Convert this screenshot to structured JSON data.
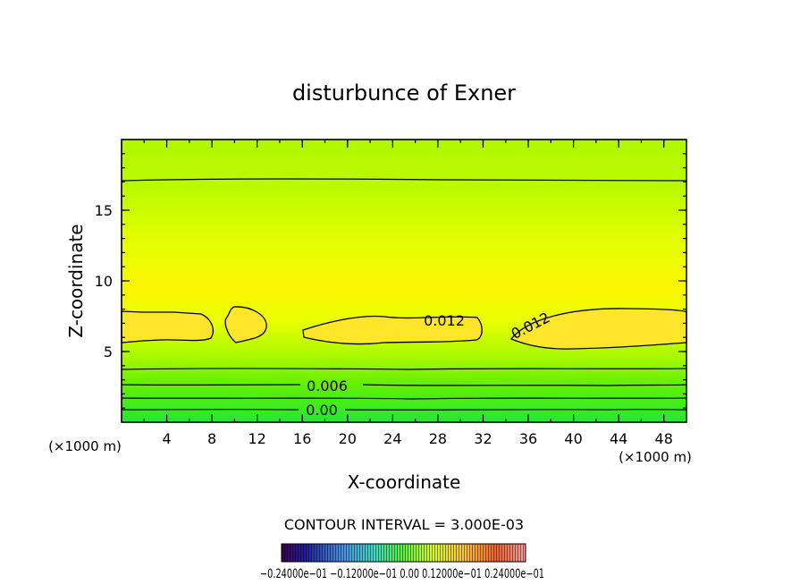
{
  "chart_data": {
    "type": "contour",
    "title": "disturbunce of Exner",
    "xlabel": "X-coordinate",
    "ylabel": "Z-coordinate",
    "x_unit_label": "(×1000 m)",
    "x_unit_label_right": "(×1000 m)",
    "xlim": [
      0,
      50
    ],
    "ylim": [
      0,
      20
    ],
    "x_ticks": [
      4,
      8,
      12,
      16,
      20,
      24,
      28,
      32,
      36,
      40,
      44,
      48
    ],
    "y_ticks": [
      5,
      10,
      15
    ],
    "contour_interval_text": "CONTOUR INTERVAL = 3.000E-03",
    "contour_labels": [
      {
        "text": "0.012",
        "x": 30.6,
        "z": 7.0
      },
      {
        "text": "0.012",
        "x": 37.0,
        "z": 6.9
      },
      {
        "text": "0.006",
        "x": 18.8,
        "z": 2.7
      },
      {
        "text": "0.00",
        "x": 17.8,
        "z": 1.0
      }
    ],
    "contours": [
      {
        "level": 0.0,
        "z": 1.0
      },
      {
        "level": 0.003,
        "z": 1.85
      },
      {
        "level": 0.006,
        "z": 2.7
      },
      {
        "level": 0.009,
        "z": 3.75
      },
      {
        "level": 0.009,
        "z": 17.1
      }
    ],
    "colorbar": {
      "tick_labels_text": "−0.24000e−01  −0.12000e−01  0.00  0.12000e−01  0.24000e−01",
      "min": -0.024,
      "max": 0.024
    }
  }
}
